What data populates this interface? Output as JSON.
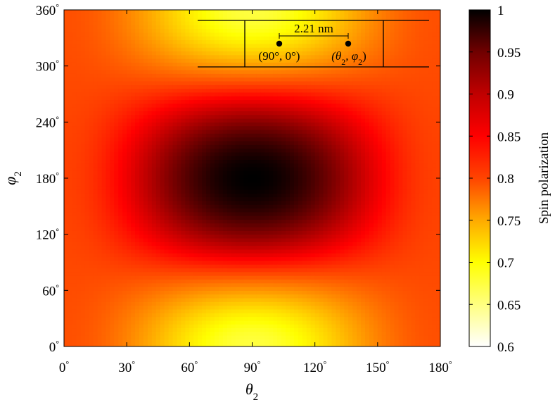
{
  "chart_data": {
    "type": "heatmap",
    "title": "",
    "xlabel": "θ",
    "xlabel_sub": "2",
    "ylabel": "φ",
    "ylabel_sub": "2",
    "xlim": [
      0,
      180
    ],
    "ylim": [
      0,
      360
    ],
    "x_ticks": [
      0,
      30,
      60,
      90,
      120,
      150,
      180
    ],
    "x_tick_labels": [
      "0",
      "30",
      "60",
      "90",
      "120",
      "150",
      "180"
    ],
    "y_ticks": [
      0,
      60,
      120,
      180,
      240,
      300,
      360
    ],
    "y_tick_labels": [
      "0",
      "60",
      "120",
      "180",
      "240",
      "300",
      "360"
    ],
    "tick_suffix": "°",
    "colorbar": {
      "label": "Spin polarization",
      "range": [
        0.6,
        1.0
      ],
      "ticks": [
        0.6,
        0.65,
        0.7,
        0.75,
        0.8,
        0.85,
        0.9,
        0.95,
        1.0
      ],
      "tick_labels": [
        "0.6",
        "0.65",
        "0.7",
        "0.75",
        "0.8",
        "0.85",
        "0.9",
        "0.95",
        "1"
      ],
      "colormap": "hot (reversed)"
    },
    "value_samples": [
      {
        "theta2": 0,
        "phi2": 180,
        "value": 0.8
      },
      {
        "theta2": 90,
        "phi2": 180,
        "value": 1.0
      },
      {
        "theta2": 180,
        "phi2": 180,
        "value": 0.8
      },
      {
        "theta2": 90,
        "phi2": 0,
        "value": 0.66
      },
      {
        "theta2": 90,
        "phi2": 360,
        "value": 0.66
      },
      {
        "theta2": 0,
        "phi2": 0,
        "value": 0.79
      },
      {
        "theta2": 180,
        "phi2": 360,
        "value": 0.79
      }
    ],
    "grid": false,
    "inset": {
      "distance_label": "2.21 nm",
      "point1_label": "(90°, 0°)",
      "point2_label": "(θ",
      "point2_label_sub1": "2",
      "point2_label_mid": ", φ",
      "point2_label_sub2": "2",
      "point2_label_end": ")"
    }
  },
  "colors": {
    "black": "#000000",
    "dark_red": "#8b0000",
    "red": "#ff1a00",
    "yellow": "#ffff00",
    "white": "#ffffff"
  }
}
